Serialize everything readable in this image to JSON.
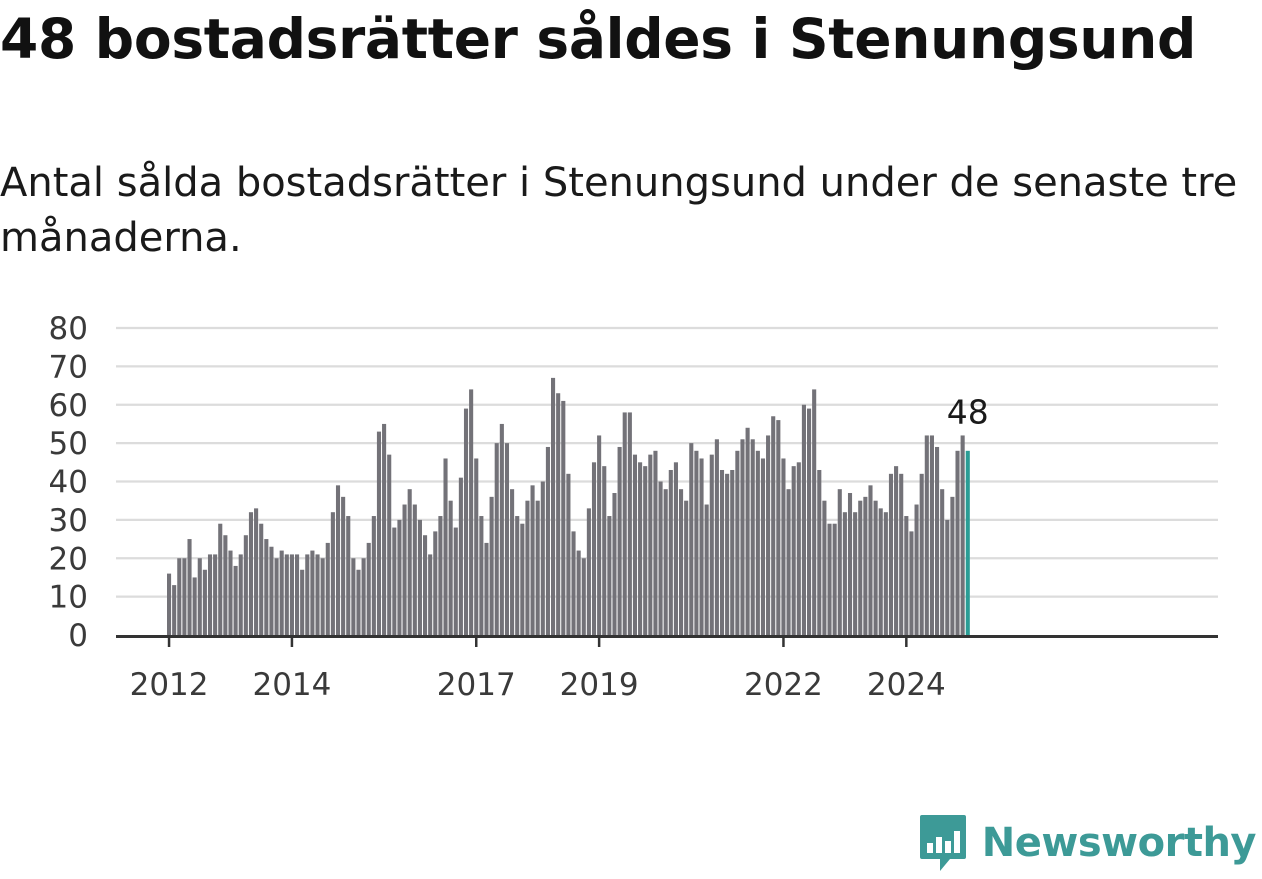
{
  "title": "48 bostadsrätter såldes i Stenungsund",
  "subtitle": "Antal sålda bostadsrätter i Stenungsund under de senaste tre månaderna.",
  "brand": {
    "name": "Newsworthy",
    "color": "#3d9a97",
    "icon": "bar-chart-badge-icon"
  },
  "chart_data": {
    "type": "bar",
    "title": "48 bostadsrätter såldes i Stenungsund",
    "subtitle": "Antal sålda bostadsrätter i Stenungsund under de senaste tre månaderna.",
    "xlabel": "",
    "ylabel": "",
    "ylim": [
      0,
      80
    ],
    "yticks": [
      0,
      10,
      20,
      30,
      40,
      50,
      60,
      70,
      80
    ],
    "grid": true,
    "legend": "none",
    "bar_color": "#737278",
    "highlight_color": "#2a9d95",
    "start": "2012-01",
    "frequency": "monthly",
    "xticks": [
      {
        "label": "2012",
        "date": "2012-01"
      },
      {
        "label": "2014",
        "date": "2014-01"
      },
      {
        "label": "2017",
        "date": "2017-01"
      },
      {
        "label": "2019",
        "date": "2019-01"
      },
      {
        "label": "2022",
        "date": "2022-01"
      },
      {
        "label": "2024",
        "date": "2024-01"
      }
    ],
    "end_label": "48",
    "values": [
      16,
      13,
      20,
      20,
      25,
      15,
      20,
      17,
      21,
      21,
      29,
      26,
      22,
      18,
      21,
      26,
      32,
      33,
      29,
      25,
      23,
      20,
      22,
      21,
      21,
      21,
      17,
      21,
      22,
      21,
      20,
      24,
      32,
      39,
      36,
      31,
      20,
      17,
      20,
      24,
      31,
      53,
      55,
      47,
      28,
      30,
      34,
      38,
      34,
      30,
      26,
      21,
      27,
      31,
      46,
      35,
      28,
      41,
      59,
      64,
      46,
      31,
      24,
      36,
      50,
      55,
      50,
      38,
      31,
      29,
      35,
      39,
      35,
      40,
      49,
      67,
      63,
      61,
      42,
      27,
      22,
      20,
      33,
      45,
      52,
      44,
      31,
      37,
      49,
      58,
      58,
      47,
      45,
      44,
      47,
      48,
      40,
      38,
      43,
      45,
      38,
      35,
      50,
      48,
      46,
      34,
      47,
      51,
      43,
      42,
      43,
      48,
      51,
      54,
      51,
      48,
      46,
      52,
      57,
      56,
      46,
      38,
      44,
      45,
      60,
      59,
      64,
      43,
      35,
      29,
      29,
      38,
      32,
      37,
      32,
      35,
      36,
      39,
      35,
      33,
      32,
      42,
      44,
      42,
      31,
      27,
      34,
      42,
      52,
      52,
      49,
      38,
      30,
      36,
      48,
      52,
      48
    ]
  }
}
